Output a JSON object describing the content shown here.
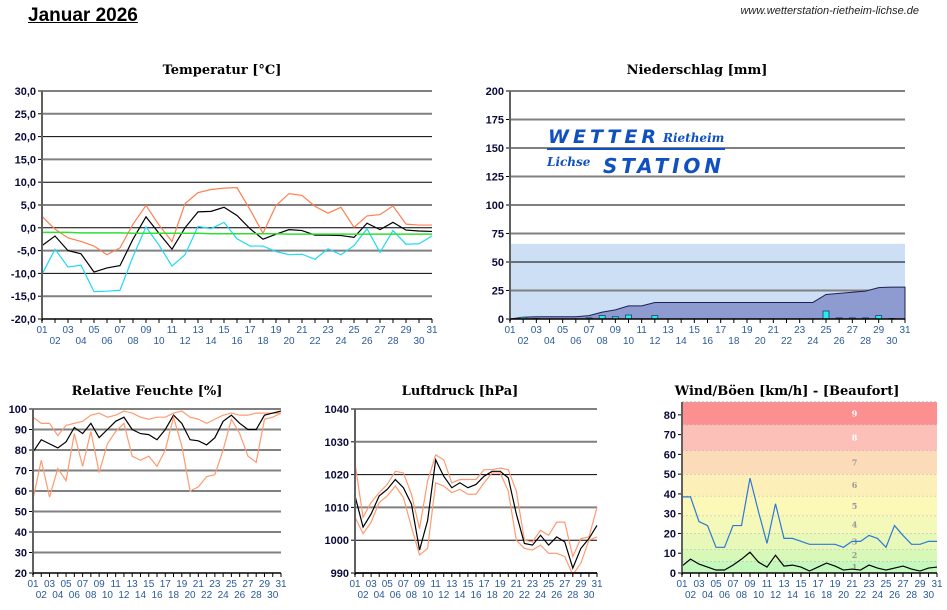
{
  "page": {
    "title": "Januar 2026",
    "url": "www.wetterstation-rietheim-lichse.de"
  },
  "logo": {
    "line1": "WETTER",
    "line1b": "Rietheim",
    "line2a": "Lichse",
    "line2": "STATION",
    "color": "#1050c0"
  },
  "days": [
    "01",
    "02",
    "03",
    "04",
    "05",
    "06",
    "07",
    "08",
    "09",
    "10",
    "11",
    "12",
    "13",
    "14",
    "15",
    "16",
    "17",
    "18",
    "19",
    "20",
    "21",
    "22",
    "23",
    "24",
    "25",
    "26",
    "27",
    "28",
    "29",
    "30",
    "31"
  ],
  "chart_data": [
    {
      "id": "temperature",
      "type": "line",
      "title": "Temperatur [°C]",
      "ylim": [
        -20,
        30
      ],
      "yticks": [
        30,
        25,
        20,
        15,
        10,
        5,
        0,
        -5,
        -10,
        -15,
        -20
      ],
      "ytick_format": "comma1",
      "grid": true,
      "series": [
        {
          "color": "#ff7f50",
          "values": [
            2.5,
            -0.3,
            -2.2,
            -3,
            -4,
            -5.9,
            -4.4,
            0.8,
            4.9,
            0.6,
            -3,
            5.3,
            7.7,
            8.4,
            8.7,
            8.8,
            4,
            -1.2,
            4.9,
            7.5,
            7.1,
            4.7,
            3.2,
            4.5,
            0.1,
            2.6,
            2.9,
            4.8,
            0.8,
            0.6,
            0.6
          ]
        },
        {
          "color": "#000000",
          "values": [
            -3.9,
            -1.8,
            -5,
            -5.7,
            -9.7,
            -8.8,
            -8.3,
            -2.5,
            2.4,
            -1.2,
            -4.7,
            0,
            3.5,
            3.6,
            4.5,
            2.7,
            -0.2,
            -2.5,
            -1.4,
            -0.4,
            -0.6,
            -1.6,
            -1.6,
            -1.7,
            -2.1,
            1,
            -0.4,
            1.2,
            -0.5,
            -0.7,
            -0.8
          ]
        },
        {
          "color": "#20d8f8",
          "values": [
            -10.2,
            -4.7,
            -8.6,
            -8.2,
            -14,
            -13.9,
            -13.7,
            -6.3,
            0.2,
            -3.8,
            -8.4,
            -5.9,
            0.3,
            -0.2,
            1.2,
            -2.4,
            -4,
            -4,
            -5.2,
            -5.9,
            -5.8,
            -6.9,
            -4.6,
            -5.9,
            -3.9,
            -0.2,
            -5.4,
            -0.6,
            -3.6,
            -3.5,
            -1.8
          ]
        },
        {
          "color": "#30e030",
          "values": [
            -1.0,
            -1.0,
            -1.0,
            -1.1,
            -1.1,
            -1.1,
            -1.1,
            -1.2,
            -1.2,
            -1.2,
            -1.2,
            -1.2,
            -1.2,
            -1.3,
            -1.3,
            -1.3,
            -1.3,
            -1.3,
            -1.3,
            -1.4,
            -1.4,
            -1.4,
            -1.4,
            -1.4,
            -1.4,
            -1.4,
            -1.4,
            -1.4,
            -1.4,
            -1.4,
            -1.4
          ]
        }
      ]
    },
    {
      "id": "precipitation",
      "type": "bar",
      "title": "Niederschlag [mm]",
      "ylim": [
        0,
        200
      ],
      "yticks": [
        200,
        175,
        150,
        125,
        100,
        75,
        50,
        25,
        0
      ],
      "ytick_format": "int",
      "grid": true,
      "reference_band": {
        "value": 66,
        "color": "#cddff5"
      },
      "cumulative": {
        "color": "#8e9bd0",
        "values": [
          0,
          1.5,
          2,
          2,
          2,
          2,
          3,
          6,
          8,
          11.5,
          11.5,
          14.5,
          14.5,
          14.5,
          14.5,
          14.5,
          14.5,
          14.5,
          14.5,
          14.5,
          14.5,
          14.5,
          14.5,
          14.5,
          21.5,
          22.5,
          23.5,
          24.5,
          27.5,
          28,
          28
        ]
      },
      "daily": {
        "color": "#20f0f0",
        "values": [
          0,
          1.5,
          0.5,
          0,
          0,
          0,
          1,
          3,
          2,
          3.5,
          0,
          3,
          0,
          0,
          0,
          0,
          0,
          0,
          0,
          0,
          0,
          0,
          0,
          0,
          7,
          1,
          1,
          1,
          3,
          0.5,
          0
        ]
      }
    },
    {
      "id": "humidity",
      "type": "line",
      "title": "Relative Feuchte [%]",
      "ylim": [
        20,
        100
      ],
      "yticks": [
        100,
        90,
        80,
        70,
        60,
        50,
        40,
        30,
        20
      ],
      "ytick_format": "int",
      "grid": true,
      "series": [
        {
          "color": "#ff9a70",
          "values": [
            96,
            93,
            93,
            87,
            92,
            93,
            94,
            97,
            98,
            96,
            97,
            99,
            98,
            96,
            95,
            96,
            96,
            98,
            99,
            96,
            95,
            93,
            95,
            97,
            98,
            97,
            97,
            98,
            98,
            98,
            98
          ]
        },
        {
          "color": "#000000",
          "values": [
            79,
            85,
            83,
            81,
            84,
            91,
            88,
            93,
            86,
            90,
            94,
            96,
            90,
            88,
            87.5,
            85,
            90,
            97,
            93,
            85,
            84.5,
            82.5,
            86,
            94,
            97,
            93,
            90,
            90,
            97,
            98,
            99
          ]
        },
        {
          "color": "#ff9a70",
          "values": [
            56,
            75,
            57,
            71,
            65,
            88,
            72,
            89,
            69,
            83,
            89,
            93,
            77,
            75,
            77,
            72,
            80,
            96,
            82,
            60,
            62,
            67,
            68,
            80,
            95,
            88,
            77,
            74,
            95,
            96,
            98
          ]
        }
      ]
    },
    {
      "id": "pressure",
      "type": "line",
      "title": "Luftdruck [hPa]",
      "ylim": [
        990,
        1040
      ],
      "yticks": [
        1040,
        1030,
        1020,
        1010,
        1000,
        990
      ],
      "ytick_format": "int",
      "grid": true,
      "series": [
        {
          "color": "#ff9a70",
          "values": [
            1023.5,
            1007,
            1011.5,
            1014.5,
            1017,
            1021,
            1020.5,
            1014,
            1003.5,
            1018,
            1026,
            1024.5,
            1017.5,
            1018.5,
            1018.5,
            1018.5,
            1021.5,
            1021.5,
            1022,
            1021.5,
            1015,
            1000,
            999.5,
            1003,
            1001.5,
            1005.5,
            1005.5,
            995,
            1000.5,
            1001,
            1010
          ]
        },
        {
          "color": "#000000",
          "values": [
            1013.5,
            1004,
            1008,
            1013.5,
            1015.5,
            1018.5,
            1016,
            1011,
            997,
            1006,
            1024.5,
            1019.5,
            1016,
            1017.5,
            1016,
            1017,
            1019.5,
            1021,
            1021,
            1019,
            1008,
            999,
            998.5,
            1001.5,
            998.5,
            1001,
            999.5,
            991.5,
            997.5,
            1000.5,
            1004.5
          ]
        },
        {
          "color": "#ff9a70",
          "values": [
            1007,
            1002,
            1005.5,
            1011.5,
            1013.5,
            1016.5,
            1013,
            1004,
            995.5,
            997.5,
            1017.5,
            1016.5,
            1014.5,
            1015.5,
            1014,
            1014,
            1017.5,
            1020.5,
            1020.5,
            1015,
            1000,
            997.5,
            997,
            998.5,
            996,
            996,
            995,
            989.5,
            993,
            1000,
            1001
          ]
        }
      ]
    },
    {
      "id": "wind",
      "type": "line",
      "title": "Wind/Böen [km/h] - [Beaufort]",
      "ylim": [
        0,
        86.5
      ],
      "yticks": [
        80,
        70,
        60,
        50,
        40,
        30,
        20,
        10,
        0
      ],
      "ytick_format": "int",
      "grid": false,
      "beaufort_bands": [
        {
          "label": "1",
          "from": 0,
          "to": 6,
          "color": "#c4f8bc"
        },
        {
          "label": "2",
          "from": 6,
          "to": 12,
          "color": "#d8f8b8"
        },
        {
          "label": "3",
          "from": 12,
          "to": 20,
          "color": "#e8f8b8"
        },
        {
          "label": "4",
          "from": 20,
          "to": 29,
          "color": "#f4f8b8"
        },
        {
          "label": "5",
          "from": 29,
          "to": 39,
          "color": "#fcf8b8"
        },
        {
          "label": "6",
          "from": 39,
          "to": 50,
          "color": "#fcf0b8"
        },
        {
          "label": "7",
          "from": 50,
          "to": 62,
          "color": "#fcdcb8"
        },
        {
          "label": "8",
          "from": 62,
          "to": 75,
          "color": "#fcc0b8"
        },
        {
          "label": "9",
          "from": 75,
          "to": 86.5,
          "color": "#fc9090"
        }
      ],
      "series": [
        {
          "color": "#2a7ad8",
          "values": [
            38.5,
            38.5,
            26,
            24,
            13,
            13,
            24,
            24,
            48,
            31,
            15,
            35,
            17.5,
            17.5,
            16,
            14.5,
            14.5,
            14.5,
            14.5,
            13,
            16,
            16,
            19,
            17.5,
            13,
            24,
            19,
            14.5,
            14.5,
            16,
            16
          ]
        },
        {
          "color": "#000000",
          "values": [
            3.5,
            7,
            4.5,
            3,
            1.5,
            1.5,
            4,
            7,
            10.5,
            5.5,
            3,
            9,
            3.5,
            4,
            3,
            1,
            3,
            5,
            3.5,
            1.5,
            2,
            1.5,
            4,
            2.5,
            1.5,
            2.5,
            3.5,
            2,
            1,
            2.5,
            3
          ]
        }
      ]
    }
  ]
}
